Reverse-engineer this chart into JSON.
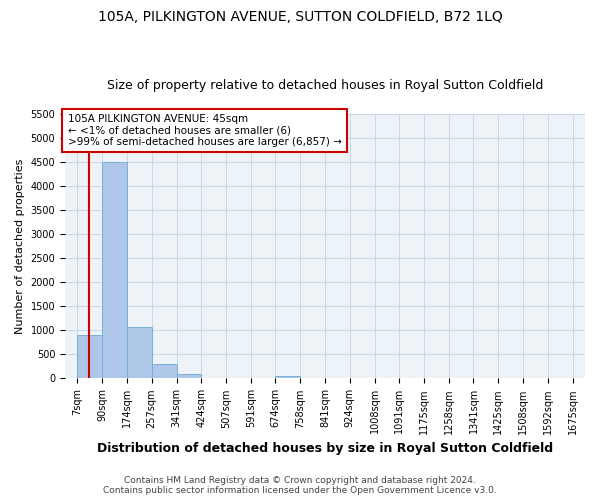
{
  "title": "105A, PILKINGTON AVENUE, SUTTON COLDFIELD, B72 1LQ",
  "subtitle": "Size of property relative to detached houses in Royal Sutton Coldfield",
  "xlabel": "Distribution of detached houses by size in Royal Sutton Coldfield",
  "ylabel": "Number of detached properties",
  "footer_line1": "Contains HM Land Registry data © Crown copyright and database right 2024.",
  "footer_line2": "Contains public sector information licensed under the Open Government Licence v3.0.",
  "bins": [
    7,
    90,
    174,
    257,
    341,
    424,
    507,
    591,
    674,
    758,
    841,
    924,
    1008,
    1091,
    1175,
    1258,
    1341,
    1425,
    1508,
    1592,
    1675
  ],
  "bin_labels": [
    "7sqm",
    "90sqm",
    "174sqm",
    "257sqm",
    "341sqm",
    "424sqm",
    "507sqm",
    "591sqm",
    "674sqm",
    "758sqm",
    "841sqm",
    "924sqm",
    "1008sqm",
    "1091sqm",
    "1175sqm",
    "1258sqm",
    "1341sqm",
    "1425sqm",
    "1508sqm",
    "1592sqm",
    "1675sqm"
  ],
  "values": [
    900,
    4500,
    1075,
    300,
    90,
    0,
    0,
    0,
    55,
    0,
    0,
    0,
    0,
    0,
    0,
    0,
    0,
    0,
    0,
    0
  ],
  "bar_color": "#aec6e8",
  "bar_edge_color": "#7aafd4",
  "property_line_x": 45,
  "property_line_color": "#cc0000",
  "annotation_text": "105A PILKINGTON AVENUE: 45sqm\n← <1% of detached houses are smaller (6)\n>99% of semi-detached houses are larger (6,857) →",
  "annotation_box_color": "#cc0000",
  "ylim": [
    0,
    5500
  ],
  "yticks": [
    0,
    500,
    1000,
    1500,
    2000,
    2500,
    3000,
    3500,
    4000,
    4500,
    5000,
    5500
  ],
  "grid_color": "#c8d8e8",
  "title_fontsize": 10,
  "subtitle_fontsize": 9,
  "xlabel_fontsize": 9,
  "ylabel_fontsize": 8,
  "tick_fontsize": 7,
  "annot_fontsize": 7.5,
  "footer_fontsize": 6.5
}
